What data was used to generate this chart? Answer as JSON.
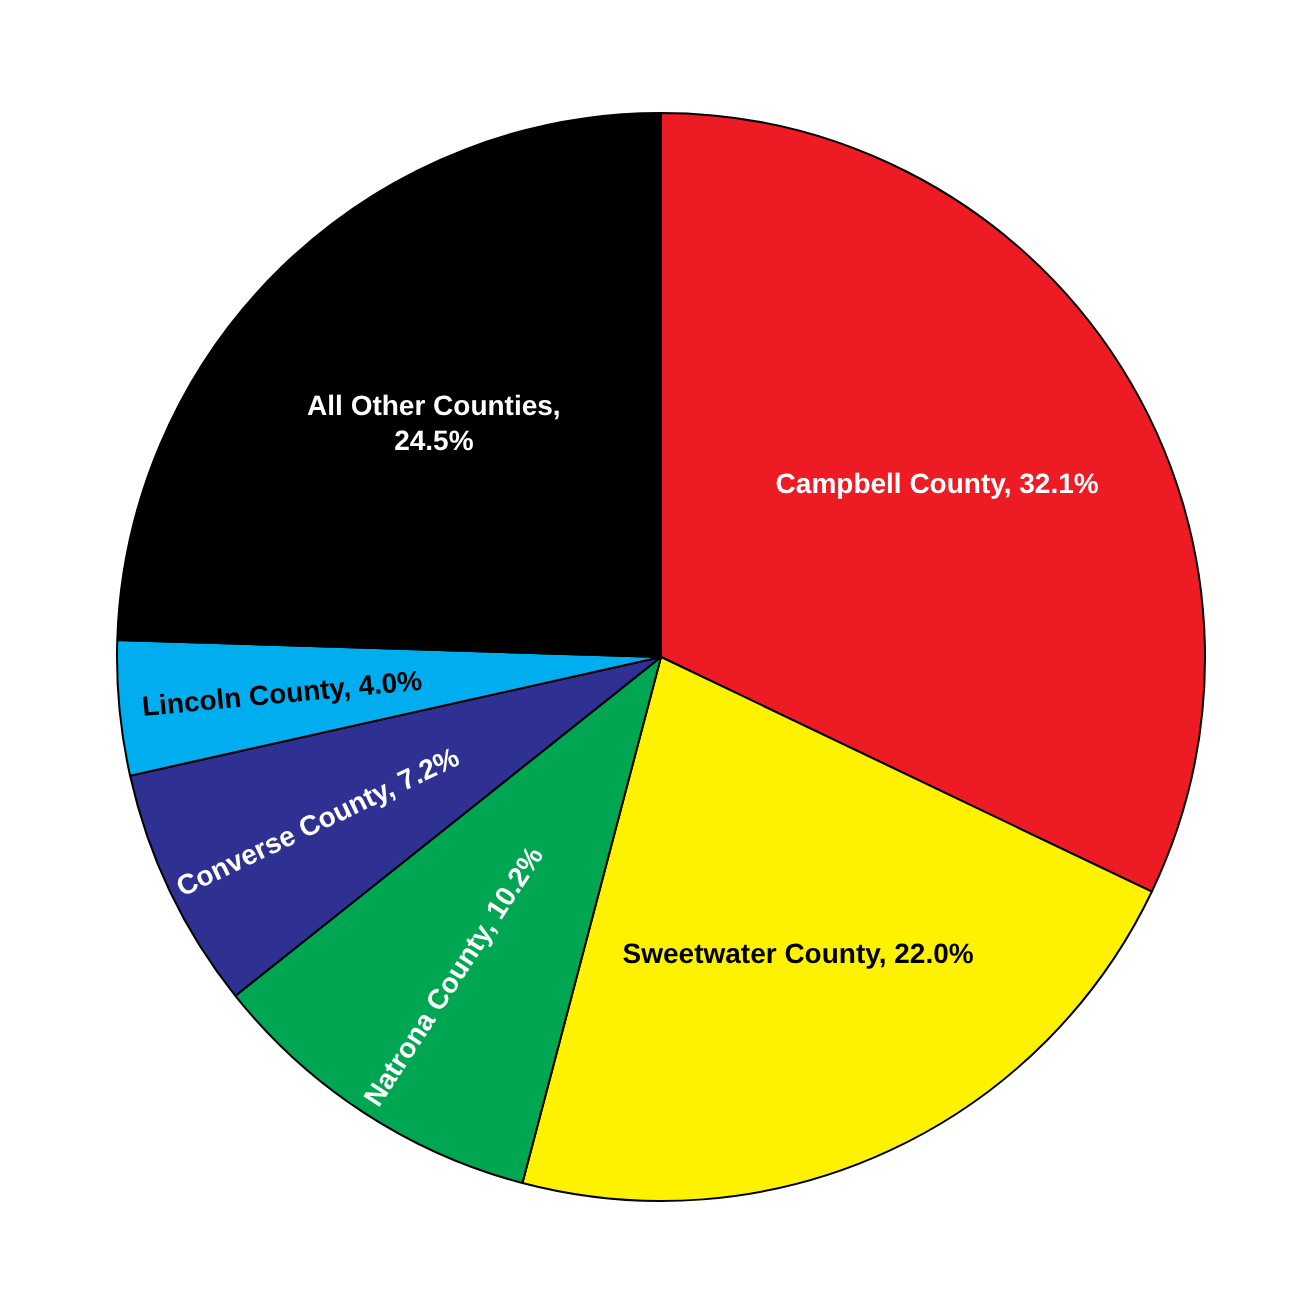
{
  "chart_data": {
    "type": "pie",
    "categories": [
      "Campbell County, 32.1%",
      "Sweetwater County, 22.0%",
      "Natrona County, 10.2%",
      "Converse County, 7.2%",
      "Lincoln County, 4.0%",
      "All Other Counties, 24.5%"
    ],
    "values": [
      32.1,
      22.0,
      10.2,
      7.2,
      4.0,
      24.5
    ],
    "colors": [
      "#ed1c24",
      "#fff200",
      "#00a651",
      "#2e3192",
      "#00aeef",
      "#000000"
    ],
    "legend": false
  }
}
